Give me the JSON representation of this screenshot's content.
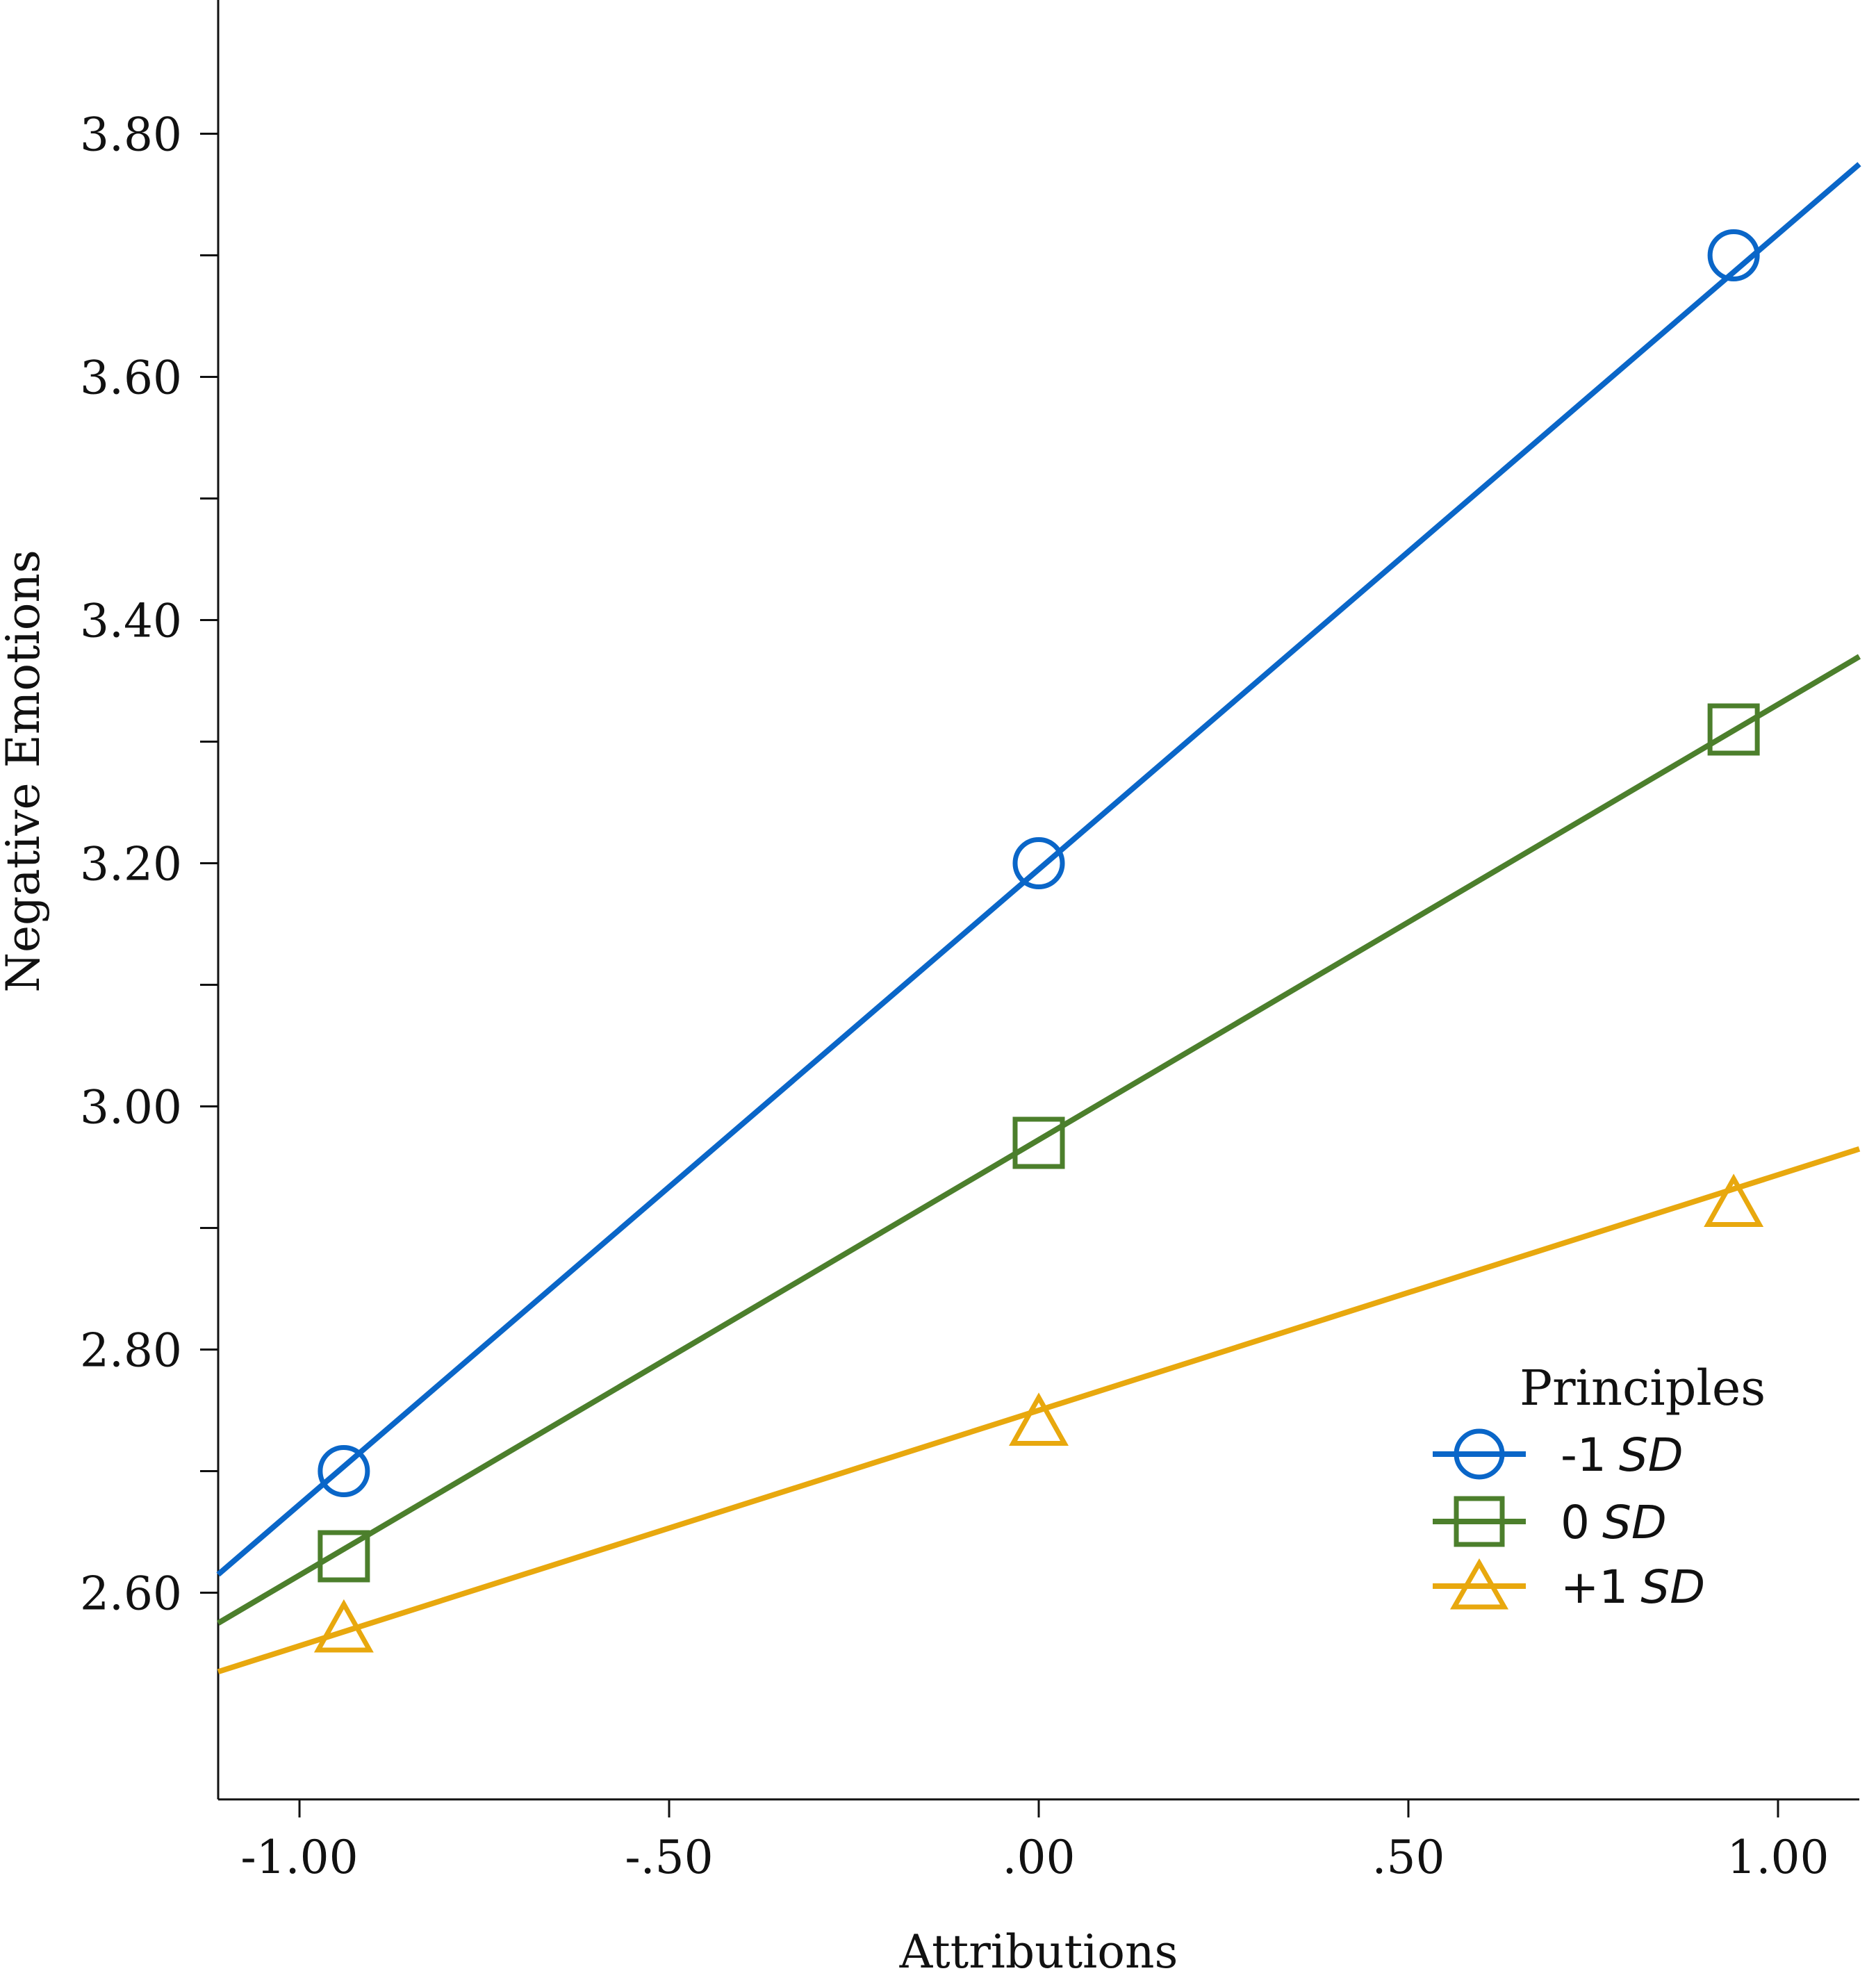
{
  "chart_data": {
    "type": "line",
    "xlabel": "Attributions",
    "ylabel": "Negative Emotions",
    "xlim": [
      -1.11,
      1.11
    ],
    "ylim": [
      2.43,
      3.91
    ],
    "x_ticks": [
      -1.0,
      -0.5,
      0.0,
      0.5,
      1.0
    ],
    "x_tick_labels": [
      "-1.00",
      "-.50",
      ".00",
      ".50",
      "1.00"
    ],
    "y_ticks": [
      2.6,
      2.7,
      2.8,
      2.9,
      3.0,
      3.1,
      3.2,
      3.3,
      3.4,
      3.5,
      3.6,
      3.7,
      3.8
    ],
    "y_tick_labels": [
      "2.60",
      "",
      "2.80",
      "",
      "3.00",
      "",
      "3.20",
      "",
      "3.40",
      "",
      "3.60",
      "",
      "3.80"
    ],
    "legend": {
      "title": "Principles",
      "position": "bottom-right"
    },
    "series": [
      {
        "name_prefix": "-1",
        "name_suffix": "SD",
        "color": "#0a66c8",
        "marker": "circle",
        "x": [
          -0.94,
          0.0,
          0.94
        ],
        "values": [
          2.7,
          3.2,
          3.7
        ],
        "line_x": [
          -1.11,
          1.11
        ],
        "line_y": [
          2.615,
          3.775
        ]
      },
      {
        "name_prefix": "0",
        "name_suffix": "SD",
        "color": "#4c7f2c",
        "marker": "square",
        "x": [
          -0.94,
          0.0,
          0.94
        ],
        "values": [
          2.63,
          2.97,
          3.31
        ],
        "line_x": [
          -1.11,
          1.11
        ],
        "line_y": [
          2.575,
          3.37
        ]
      },
      {
        "name_prefix": "+1",
        "name_suffix": "SD",
        "color": "#e8a80e",
        "marker": "triangle",
        "x": [
          -0.94,
          0.0,
          0.94
        ],
        "values": [
          2.57,
          2.74,
          2.92
        ],
        "line_x": [
          -1.11,
          1.11
        ],
        "line_y": [
          2.535,
          2.965
        ]
      }
    ]
  }
}
